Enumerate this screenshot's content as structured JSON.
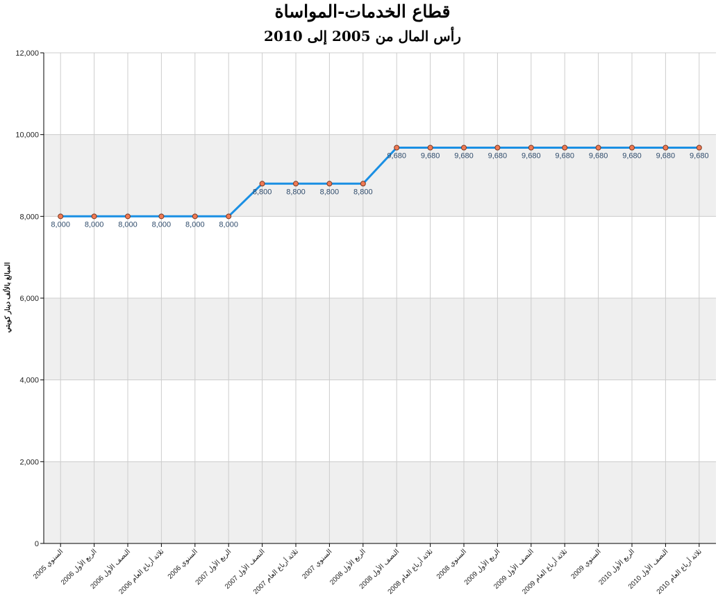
{
  "chart_data": {
    "type": "line",
    "title": "قطاع الخدمات-المواساة",
    "subtitle": "رأس المال من 2005 إلى 2010",
    "ylabel": "المبالغ بالألف دينار كويتي",
    "xlabel": "",
    "ylim": [
      0,
      12000
    ],
    "yticks": [
      0,
      2000,
      4000,
      6000,
      8000,
      10000,
      12000
    ],
    "ytick_labels": [
      "0",
      "2,000",
      "4,000",
      "6,000",
      "8,000",
      "10,000",
      "12,000"
    ],
    "grid": true,
    "categories": [
      "السنوي 2005",
      "الربع الأول 2006",
      "النصف الأول 2006",
      "ثلاثة أرباع العام 2006",
      "السنوي 2006",
      "الربع الأول 2007",
      "النصف الأول 2007",
      "ثلاثة أرباع العام 2007",
      "السنوي 2007",
      "الربع الأول 2008",
      "النصف الأول 2008",
      "ثلاثة أرباع العام 2008",
      "السنوي 2008",
      "الربع الأول 2009",
      "النصف الأول 2009",
      "ثلاثة أرباع العام 2009",
      "السنوي 2009",
      "الربع الأول 2010",
      "النصف الأول 2010",
      "ثلاثة أرباع العام 2010"
    ],
    "values": [
      8000,
      8000,
      8000,
      8000,
      8000,
      8000,
      8800,
      8800,
      8800,
      8800,
      9680,
      9680,
      9680,
      9680,
      9680,
      9680,
      9680,
      9680,
      9680,
      9680
    ],
    "value_labels": [
      "8,000",
      "8,000",
      "8,000",
      "8,000",
      "8,000",
      "8,000",
      "8,800",
      "8,800",
      "8,800",
      "8,800",
      "9,680",
      "9,680",
      "9,680",
      "9,680",
      "9,680",
      "9,680",
      "9,680",
      "9,680",
      "9,680",
      "9,680"
    ],
    "colors": {
      "line": "#1a8fe3",
      "marker_fill": "#f07a55",
      "marker_stroke": "#7a3a22",
      "band": "#efefef",
      "grid": "#cccccc"
    }
  }
}
